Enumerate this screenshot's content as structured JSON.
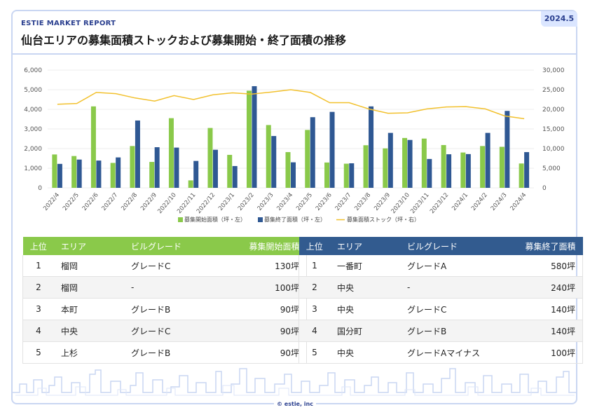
{
  "header": {
    "report_label": "ESTIE MARKET REPORT",
    "date_badge": "2024.5",
    "title": "仙台エリアの募集面積ストックおよび募集開始・終了面積の推移"
  },
  "chart_data": {
    "type": "bar",
    "categories": [
      "2022/4",
      "2022/5",
      "2022/6",
      "2022/7",
      "2022/8",
      "2022/9",
      "2022/10",
      "2022/11",
      "2022/12",
      "2023/1",
      "2023/2",
      "2023/3",
      "2023/4",
      "2023/5",
      "2023/6",
      "2023/7",
      "2023/8",
      "2023/9",
      "2023/10",
      "2023/11",
      "2023/12",
      "2024/1",
      "2024/2",
      "2024/3",
      "2024/4"
    ],
    "series": [
      {
        "name": "募集開始面積（坪・左）",
        "type": "bar",
        "axis": "left",
        "color": "#8ac94a",
        "values": [
          1700,
          1620,
          4150,
          1270,
          2130,
          1320,
          3550,
          380,
          3050,
          1680,
          4950,
          3200,
          1820,
          2950,
          1290,
          1230,
          2170,
          2010,
          2540,
          2510,
          2180,
          1800,
          2130,
          2090,
          1240
        ]
      },
      {
        "name": "募集終了面積（坪・左）",
        "type": "bar",
        "axis": "left",
        "color": "#2f5893",
        "values": [
          1220,
          1440,
          1390,
          1550,
          3430,
          2070,
          2050,
          1370,
          1940,
          1110,
          5180,
          2640,
          1300,
          3600,
          3870,
          1250,
          4150,
          2800,
          2440,
          1470,
          1710,
          1720,
          2800,
          3920,
          1820
        ]
      },
      {
        "name": "募集面積ストック（坪・右）",
        "type": "line",
        "axis": "right",
        "color": "#f2c12e",
        "values": [
          21300,
          21500,
          24300,
          24000,
          22900,
          22100,
          23500,
          22500,
          23700,
          24200,
          23900,
          24400,
          25000,
          24300,
          21700,
          21700,
          20100,
          19000,
          19100,
          20100,
          20600,
          20700,
          20100,
          18300,
          17600
        ]
      }
    ],
    "y_left": {
      "min": 0,
      "max": 6000,
      "ticks": [
        "0",
        "1,000",
        "2,000",
        "3,000",
        "4,000",
        "5,000",
        "6,000"
      ]
    },
    "y_right": {
      "min": 0,
      "max": 30000,
      "ticks": [
        "0",
        "5,000",
        "10,000",
        "15,000",
        "20,000",
        "25,000",
        "30,000"
      ]
    },
    "grid": true,
    "legend_position": "bottom"
  },
  "tables": {
    "start": {
      "headers": {
        "rank": "上位",
        "area": "エリア",
        "grade": "ビルグレード",
        "value": "募集開始面積"
      },
      "rows": [
        {
          "rank": "1",
          "area": "榴岡",
          "grade": "グレードC",
          "value": "130坪"
        },
        {
          "rank": "2",
          "area": "榴岡",
          "grade": "-",
          "value": "100坪"
        },
        {
          "rank": "3",
          "area": "本町",
          "grade": "グレードB",
          "value": "90坪"
        },
        {
          "rank": "4",
          "area": "中央",
          "grade": "グレードC",
          "value": "90坪"
        },
        {
          "rank": "5",
          "area": "上杉",
          "grade": "グレードB",
          "value": "90坪"
        }
      ]
    },
    "end": {
      "headers": {
        "rank": "上位",
        "area": "エリア",
        "grade": "ビルグレード",
        "value": "募集終了面積"
      },
      "rows": [
        {
          "rank": "1",
          "area": "一番町",
          "grade": "グレードA",
          "value": "580坪"
        },
        {
          "rank": "2",
          "area": "中央",
          "grade": "-",
          "value": "240坪"
        },
        {
          "rank": "3",
          "area": "中央",
          "grade": "グレードC",
          "value": "140坪"
        },
        {
          "rank": "4",
          "area": "国分町",
          "grade": "グレードB",
          "value": "140坪"
        },
        {
          "rank": "5",
          "area": "中央",
          "grade": "グレードAマイナス",
          "value": "100坪"
        }
      ]
    }
  },
  "footer": {
    "copyright": "© estie, inc",
    "skyline": "city-skyline-illustration"
  }
}
